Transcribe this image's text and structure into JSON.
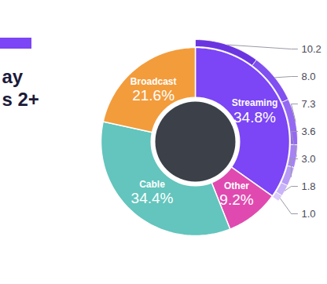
{
  "chart_data": {
    "type": "pie",
    "title": "ay",
    "subtitle": "s 2+",
    "categories": [
      "Streaming",
      "Other",
      "Cable",
      "Broadcast"
    ],
    "values": [
      34.8,
      9.2,
      34.4,
      21.6
    ],
    "value_labels": [
      "34.8%",
      "9.2%",
      "34.4%",
      "21.6%"
    ],
    "colors": [
      "#7c45f5",
      "#e04ab0",
      "#63c5bd",
      "#f39c3b"
    ],
    "data_labels": true,
    "streaming_breakdown": {
      "values": [
        10.2,
        8.0,
        7.3,
        3.6,
        3.0,
        1.8,
        1.0
      ],
      "value_labels": [
        "10.2",
        "8.0",
        "7.3",
        "3.6",
        "3.0",
        "1.8",
        "1.0"
      ],
      "colors": [
        "#6a35e0",
        "#8050f0",
        "#9468f3",
        "#a682f5",
        "#b89af7",
        "#c9b3f9",
        "#dacbfb"
      ]
    }
  }
}
